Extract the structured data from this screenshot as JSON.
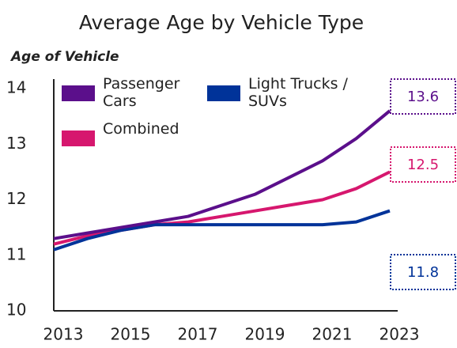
{
  "chart_data": {
    "type": "line",
    "title": "Average Age by Vehicle Type",
    "y_label": "Age of Vehicle",
    "x": [
      2013,
      2014,
      2015,
      2016,
      2017,
      2018,
      2019,
      2020,
      2021,
      2022,
      2023
    ],
    "xlim": [
      2013,
      2023
    ],
    "xticks": [
      2013,
      2015,
      2017,
      2019,
      2021,
      2023
    ],
    "ylim": [
      10,
      14
    ],
    "yticks": [
      10,
      11,
      12,
      13,
      14
    ],
    "grid": false,
    "legend": "upper left",
    "series": [
      {
        "name": "Passenger Cars",
        "color": "#5b0f8b",
        "values": [
          11.3,
          11.4,
          11.5,
          11.6,
          11.7,
          11.9,
          12.1,
          12.4,
          12.7,
          13.1,
          13.6
        ]
      },
      {
        "name": "Light Trucks / SUVs",
        "color": "#003399",
        "values": [
          11.1,
          11.3,
          11.45,
          11.55,
          11.55,
          11.55,
          11.55,
          11.55,
          11.55,
          11.6,
          11.8
        ]
      },
      {
        "name": "Combined",
        "color": "#d6176e",
        "values": [
          11.2,
          11.35,
          11.45,
          11.55,
          11.6,
          11.7,
          11.8,
          11.9,
          12.0,
          12.2,
          12.5
        ]
      }
    ]
  }
}
